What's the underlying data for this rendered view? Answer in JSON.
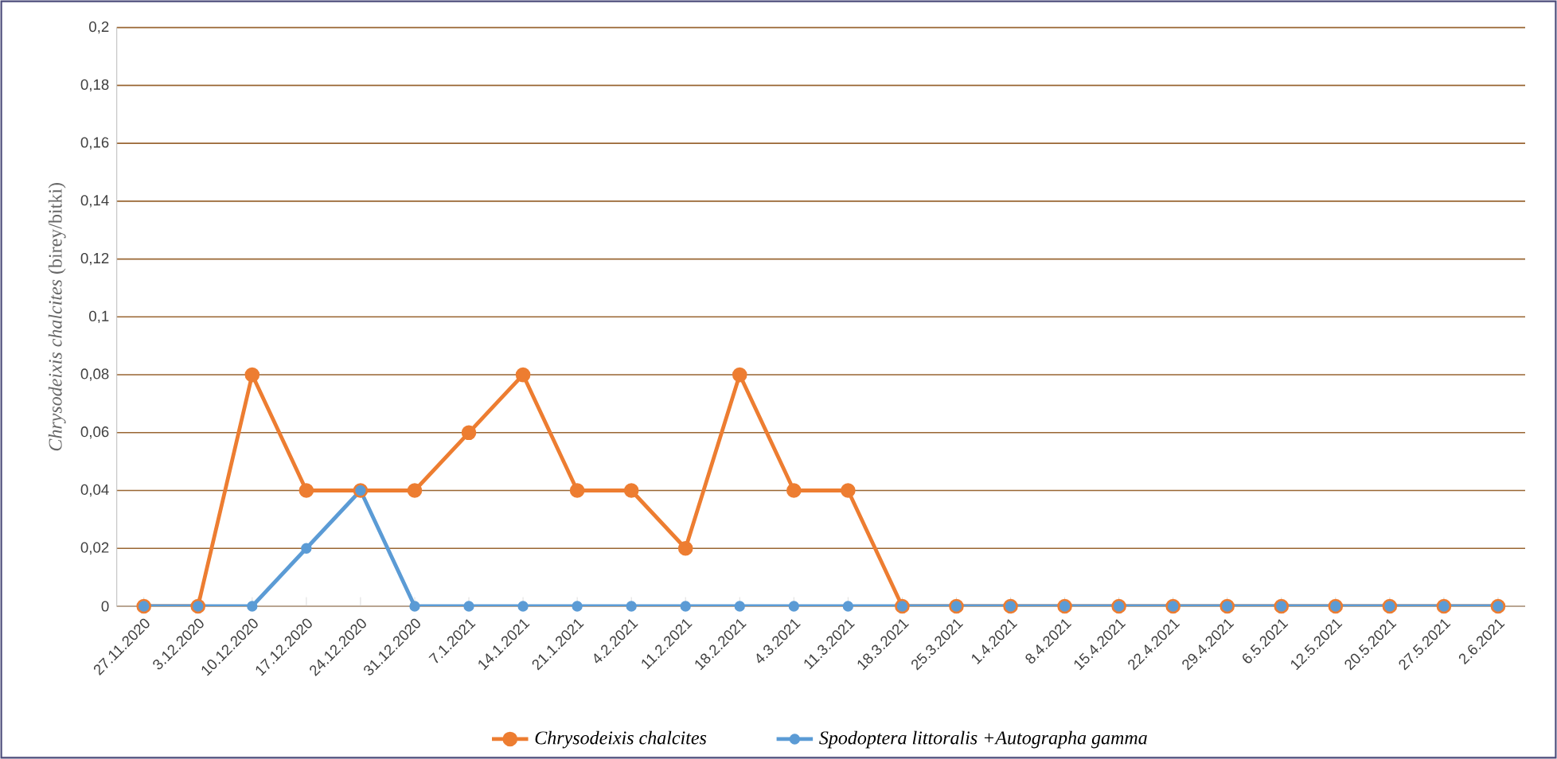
{
  "chart_data": {
    "type": "line",
    "ylabel": "*Chrysodeixis chalcites* (birey/bitki)",
    "categories": [
      "27.11.2020",
      "3.12.2020",
      "10.12.2020",
      "17.12.2020",
      "24.12.2020",
      "31.12.2020",
      "7.1.2021",
      "14.1.2021",
      "21.1.2021",
      "4.2.2021",
      "11.2.2021",
      "18.2.2021",
      "4.3.2021",
      "11.3.2021",
      "18.3.2021",
      "25.3.2021",
      "1.4.2021",
      "8.4.2021",
      "15.4.2021",
      "22.4.2021",
      "29.4.2021",
      "6.5.2021",
      "12.5.2021",
      "20.5.2021",
      "27.5.2021",
      "2.6.2021"
    ],
    "series": [
      {
        "name": "Chrysodeixis chalcites",
        "color": "#ed7d31",
        "values": [
          0,
          0,
          0.08,
          0.04,
          0.04,
          0.04,
          0.06,
          0.08,
          0.04,
          0.04,
          0.02,
          0.08,
          0.04,
          0.04,
          0,
          0,
          0,
          0,
          0,
          0,
          0,
          0,
          0,
          0,
          0,
          0
        ]
      },
      {
        "name": "Spodoptera littoralis +Autographa gamma",
        "color": "#5b9bd5",
        "values": [
          0,
          0,
          0,
          0.02,
          0.04,
          0,
          0,
          0,
          0,
          0,
          0,
          0,
          0,
          0,
          0,
          0,
          0,
          0,
          0,
          0,
          0,
          0,
          0,
          0,
          0,
          0
        ]
      }
    ],
    "ylim": [
      0,
      0.2
    ],
    "yticks": [
      0,
      {
        "value": 0.02,
        "label": "0,02"
      },
      {
        "value": 0.04,
        "label": "0,04"
      },
      {
        "value": 0.06,
        "label": "0,06"
      },
      {
        "value": 0.08,
        "label": "0,08"
      },
      {
        "value": 0.1,
        "label": "0,1"
      },
      {
        "value": 0.12,
        "label": "0,12"
      },
      {
        "value": 0.14,
        "label": "0,14"
      },
      {
        "value": 0.16,
        "label": "0,16"
      },
      {
        "value": 0.18,
        "label": "0,18"
      },
      {
        "value": 0.2,
        "label": "0,2"
      }
    ],
    "grid": "y",
    "legend": "bottom",
    "marker": "circle",
    "line_style": "solid"
  }
}
